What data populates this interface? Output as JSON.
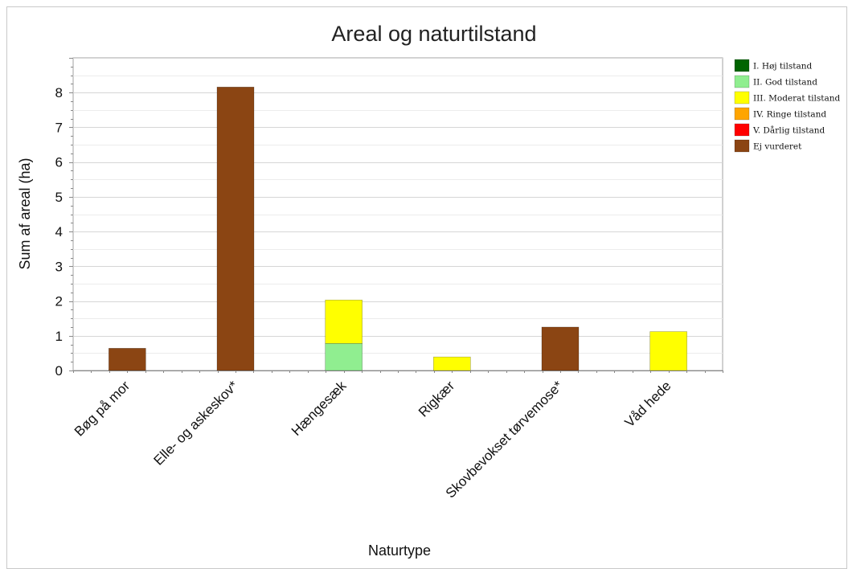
{
  "chart_data": {
    "type": "bar",
    "stacked": true,
    "title": "Areal og naturtilstand",
    "xlabel": "Naturtype",
    "ylabel": "Sum af areal (ha)",
    "categories": [
      "Bøg på mor",
      "Elle- og askeskov*",
      "Hængesæk",
      "Rigkær",
      "Skovbevokset tørvemose*",
      "Våd hede"
    ],
    "ylim": [
      0,
      9
    ],
    "yticks": [
      0,
      1,
      2,
      3,
      4,
      5,
      6,
      7,
      8
    ],
    "grid": true,
    "legend_position": "right",
    "series": [
      {
        "name": "I. Høj tilstand",
        "color": "#006400",
        "values": [
          0,
          0,
          0,
          0,
          0,
          0
        ]
      },
      {
        "name": "II. God tilstand",
        "color": "#90EE90",
        "values": [
          0,
          0,
          0.78,
          0,
          0,
          0
        ]
      },
      {
        "name": "III. Moderat tilstand",
        "color": "#FFFF00",
        "values": [
          0,
          0,
          1.25,
          0.39,
          0,
          1.12
        ]
      },
      {
        "name": "IV. Ringe tilstand",
        "color": "#FFA500",
        "values": [
          0,
          0,
          0,
          0,
          0,
          0
        ]
      },
      {
        "name": "V. Dårlig tilstand",
        "color": "#FF0000",
        "values": [
          0,
          0,
          0,
          0,
          0,
          0
        ]
      },
      {
        "name": "Ej vurderet",
        "color": "#8B4513",
        "values": [
          0.64,
          8.16,
          0,
          0,
          1.25,
          0
        ]
      }
    ]
  }
}
